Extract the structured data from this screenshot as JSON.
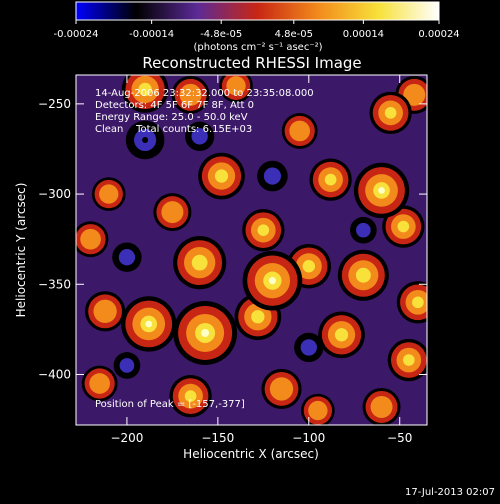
{
  "chart_data": {
    "type": "heatmap",
    "title": "Reconstructed RHESSI Image",
    "xlabel": "Heliocentric X (arcsec)",
    "ylabel": "Heliocentric Y (arcsec)",
    "xlim": [
      -228,
      -35
    ],
    "ylim": [
      -428,
      -234
    ],
    "x_ticks": [
      -200,
      -150,
      -100,
      -50
    ],
    "y_ticks": [
      -250,
      -300,
      -350,
      -400
    ],
    "colorbar": {
      "min": -0.00024,
      "max": 0.00024,
      "ticks": [
        "-0.00024",
        "-0.00014",
        "-4.8e-05",
        "4.8e-05",
        "0.00014",
        "0.00024"
      ],
      "tick_values": [
        -0.00024,
        -0.00014,
        -4.8e-05,
        4.8e-05,
        0.00014,
        0.00024
      ],
      "unit_text": "(photons cm⁻² s⁻¹ asec⁻²)",
      "colormap": [
        "#0000ff",
        "#000000",
        "#5b2a96",
        "#c82614",
        "#f28a1c",
        "#f7e13a",
        "#ffffff"
      ]
    },
    "annotations": [
      "14-Aug-2006 23:32:32.000 to 23:35:08.000",
      "Detectors: 4F 5F 6F 7F 8F, Att 0",
      "Energy Range: 25.0 - 50.0 keV",
      "Clean    Total counts: 6.15E+03"
    ],
    "peak_label": "Position of Peak = [-157,-377]",
    "peak_position": [
      -157,
      -377
    ],
    "grid": false,
    "blobs": [
      {
        "x": -190,
        "y": -242,
        "v": 0.00016
      },
      {
        "x": -165,
        "y": -245,
        "v": 0.00012
      },
      {
        "x": -140,
        "y": -240,
        "v": 0.0001
      },
      {
        "x": -55,
        "y": -255,
        "v": 0.00014
      },
      {
        "x": -42,
        "y": -245,
        "v": 0.00012
      },
      {
        "x": -105,
        "y": -265,
        "v": 0.00011
      },
      {
        "x": -148,
        "y": -290,
        "v": 0.00016
      },
      {
        "x": -88,
        "y": -292,
        "v": 0.00014
      },
      {
        "x": -60,
        "y": -298,
        "v": 0.0002
      },
      {
        "x": -48,
        "y": -318,
        "v": 0.00014
      },
      {
        "x": -210,
        "y": -300,
        "v": 0.0001
      },
      {
        "x": -175,
        "y": -310,
        "v": 0.00012
      },
      {
        "x": -125,
        "y": -320,
        "v": 0.00014
      },
      {
        "x": -220,
        "y": -325,
        "v": 0.00011
      },
      {
        "x": -160,
        "y": -338,
        "v": 0.00019
      },
      {
        "x": -120,
        "y": -348,
        "v": 0.00022
      },
      {
        "x": -100,
        "y": -340,
        "v": 0.00015
      },
      {
        "x": -70,
        "y": -345,
        "v": 0.00018
      },
      {
        "x": -40,
        "y": -360,
        "v": 0.00014
      },
      {
        "x": -212,
        "y": -365,
        "v": 0.00013
      },
      {
        "x": -188,
        "y": -372,
        "v": 0.0002
      },
      {
        "x": -157,
        "y": -377,
        "v": 0.00024
      },
      {
        "x": -128,
        "y": -368,
        "v": 0.00016
      },
      {
        "x": -82,
        "y": -378,
        "v": 0.00016
      },
      {
        "x": -45,
        "y": -392,
        "v": 0.00014
      },
      {
        "x": -215,
        "y": -405,
        "v": 0.00011
      },
      {
        "x": -165,
        "y": -412,
        "v": 0.00014
      },
      {
        "x": -115,
        "y": -408,
        "v": 0.00013
      },
      {
        "x": -95,
        "y": -420,
        "v": 0.0001
      },
      {
        "x": -60,
        "y": -418,
        "v": 0.00012
      },
      {
        "x": -190,
        "y": -270,
        "v": -0.00017
      },
      {
        "x": -160,
        "y": -268,
        "v": -0.0001
      },
      {
        "x": -120,
        "y": -290,
        "v": -0.00011
      },
      {
        "x": -200,
        "y": -335,
        "v": -0.0001
      },
      {
        "x": -100,
        "y": -385,
        "v": -0.0001
      },
      {
        "x": -200,
        "y": -395,
        "v": -8e-05
      },
      {
        "x": -70,
        "y": -320,
        "v": -8e-05
      }
    ]
  },
  "footer": {
    "timestamp": "17-Jul-2013 02:07"
  }
}
